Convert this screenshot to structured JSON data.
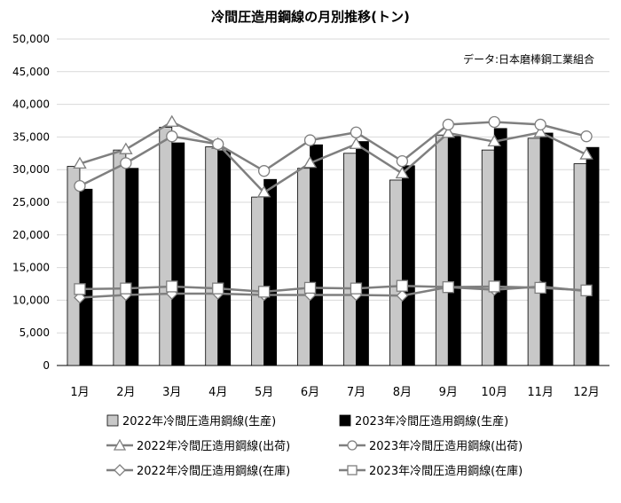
{
  "chart_data": {
    "type": "bar",
    "title": "冷間圧造用鋼線の月別推移(トン)",
    "source": "データ:日本磨棒鋼工業組合",
    "categories": [
      "1月",
      "2月",
      "3月",
      "4月",
      "5月",
      "6月",
      "7月",
      "8月",
      "9月",
      "10月",
      "11月",
      "12月"
    ],
    "ylim": [
      0,
      50000
    ],
    "yticks": [
      "0",
      "5,000",
      "10,000",
      "15,000",
      "20,000",
      "25,000",
      "30,000",
      "35,000",
      "40,000",
      "45,000",
      "50,000"
    ],
    "grid": true,
    "legend_position": "bottom",
    "bar_series": [
      {
        "name": "2022年冷間圧造用鋼線(生産)",
        "color": "#c8c8c8",
        "values": [
          30500,
          33000,
          36500,
          33500,
          25800,
          30200,
          32500,
          28400,
          35300,
          33000,
          34800,
          30900
        ]
      },
      {
        "name": "2023年冷間圧造用鋼線(生産)",
        "color": "#000000",
        "values": [
          27000,
          30200,
          34100,
          32900,
          28500,
          33800,
          34300,
          30600,
          35100,
          36300,
          35600,
          33400
        ]
      }
    ],
    "line_series": [
      {
        "name": "2022年冷間圧造用鋼線(出荷)",
        "marker": "triangle",
        "values": [
          30900,
          33100,
          37300,
          33900,
          26500,
          31000,
          33900,
          29400,
          35600,
          34300,
          35700,
          32300
        ]
      },
      {
        "name": "2023年冷間圧造用鋼線(出荷)",
        "marker": "circle",
        "values": [
          27500,
          31000,
          35100,
          33900,
          29800,
          34500,
          35700,
          31300,
          36900,
          37300,
          36900,
          35100
        ]
      },
      {
        "name": "2022年冷間圧造用鋼線(在庫)",
        "marker": "diamond",
        "values": [
          10400,
          10800,
          11000,
          11000,
          10800,
          10800,
          10800,
          10700,
          12000,
          11600,
          12100,
          11400
        ]
      },
      {
        "name": "2023年冷間圧造用鋼線(在庫)",
        "marker": "square",
        "values": [
          11700,
          11800,
          12100,
          11800,
          11300,
          11900,
          11800,
          12200,
          12000,
          12100,
          11900,
          11500
        ]
      }
    ],
    "line_color": "#7f7f7f"
  }
}
